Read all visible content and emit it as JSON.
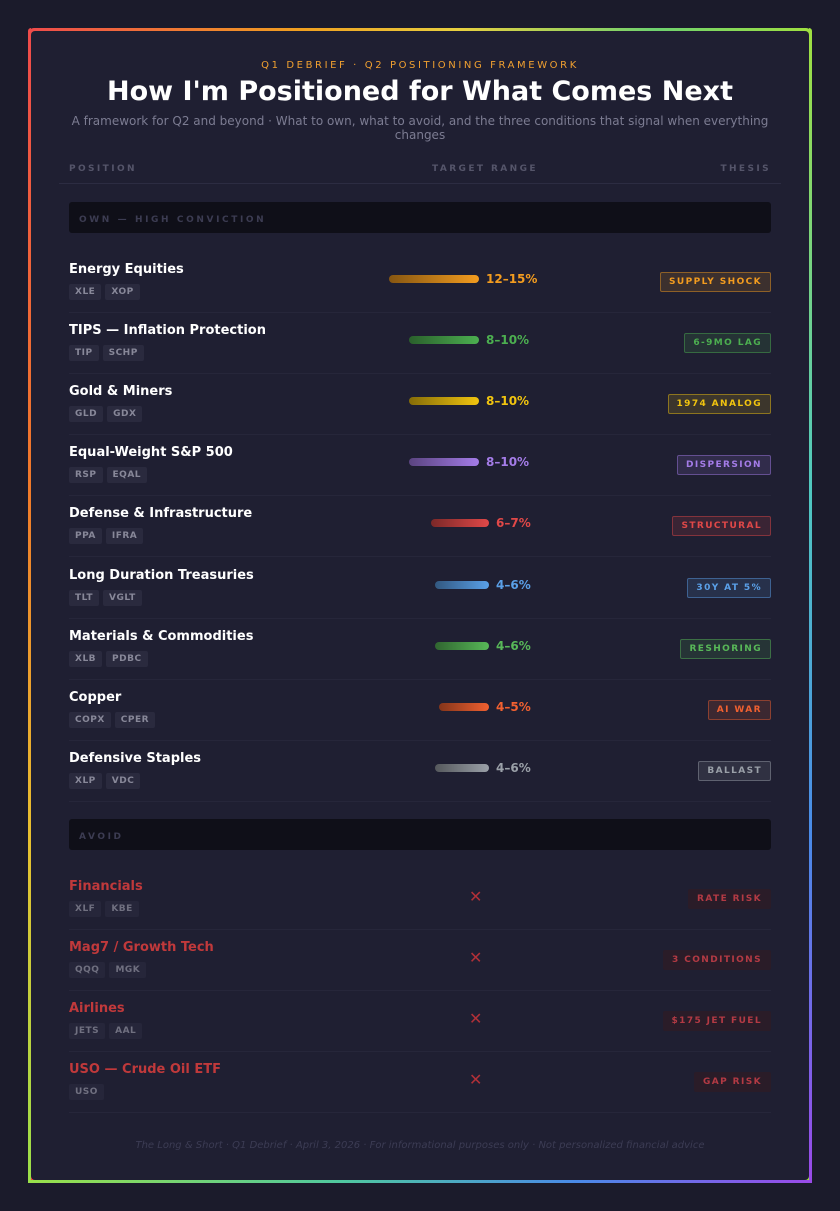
{
  "header": {
    "kicker": "Q1 DEBRIEF · Q2 POSITIONING FRAMEWORK",
    "title": "How I'm Positioned for What Comes Next",
    "subtitle": "A framework for Q2 and beyond · What to own, what to avoid, and the three conditions that signal when everything changes"
  },
  "columns": {
    "position": "POSITION",
    "target_range": "TARGET RANGE",
    "thesis": "THESIS"
  },
  "own_section": {
    "label": "OWN — HIGH CONVICTION",
    "rows": [
      {
        "name": "Energy Equities",
        "tickers": [
          "XLE",
          "XOP"
        ],
        "range": "12–15%",
        "range_low_pct": 12,
        "range_high_pct": 15,
        "thesis": "SUPPLY SHOCK",
        "color": "#f39c1f"
      },
      {
        "name": "TIPS — Inflation Protection",
        "tickers": [
          "TIP",
          "SCHP"
        ],
        "range": "8–10%",
        "range_low_pct": 8,
        "range_high_pct": 10,
        "thesis": "6-9MO LAG",
        "color": "#4caf50"
      },
      {
        "name": "Gold & Miners",
        "tickers": [
          "GLD",
          "GDX"
        ],
        "range": "8–10%",
        "range_low_pct": 8,
        "range_high_pct": 10,
        "thesis": "1974 ANALOG",
        "color": "#f1c40f"
      },
      {
        "name": "Equal-Weight S&P 500",
        "tickers": [
          "RSP",
          "EQAL"
        ],
        "range": "8–10%",
        "range_low_pct": 8,
        "range_high_pct": 10,
        "thesis": "DISPERSION",
        "color": "#a47ce8"
      },
      {
        "name": "Defense & Infrastructure",
        "tickers": [
          "PPA",
          "IFRA"
        ],
        "range": "6–7%",
        "range_low_pct": 6,
        "range_high_pct": 7,
        "thesis": "STRUCTURAL",
        "color": "#e04848"
      },
      {
        "name": "Long Duration Treasuries",
        "tickers": [
          "TLT",
          "VGLT"
        ],
        "range": "4–6%",
        "range_low_pct": 4,
        "range_high_pct": 6,
        "thesis": "30Y AT 5%",
        "color": "#5aa0e8"
      },
      {
        "name": "Materials & Commodities",
        "tickers": [
          "XLB",
          "PDBC"
        ],
        "range": "4–6%",
        "range_low_pct": 4,
        "range_high_pct": 6,
        "thesis": "RESHORING",
        "color": "#58b858"
      },
      {
        "name": "Copper",
        "tickers": [
          "COPX",
          "CPER"
        ],
        "range": "4–5%",
        "range_low_pct": 4,
        "range_high_pct": 5,
        "thesis": "AI WAR",
        "color": "#f06030"
      },
      {
        "name": "Defensive Staples",
        "tickers": [
          "XLP",
          "VDC"
        ],
        "range": "4–6%",
        "range_low_pct": 4,
        "range_high_pct": 6,
        "thesis": "BALLAST",
        "color": "#9aa0a8"
      }
    ]
  },
  "avoid_section": {
    "label": "AVOID",
    "mark": "✕",
    "rows": [
      {
        "name": "Financials",
        "tickers": [
          "XLF",
          "KBE"
        ],
        "thesis": "RATE RISK"
      },
      {
        "name": "Mag7 / Growth Tech",
        "tickers": [
          "QQQ",
          "MGK"
        ],
        "thesis": "3 CONDITIONS"
      },
      {
        "name": "Airlines",
        "tickers": [
          "JETS",
          "AAL"
        ],
        "thesis": "$175 JET FUEL"
      },
      {
        "name": "USO — Crude Oil ETF",
        "tickers": [
          "USO"
        ],
        "thesis": "GAP RISK"
      }
    ]
  },
  "footer": "The Long & Short · Q1 Debrief · April 3, 2026 · For informational purposes only · Not personalized financial advice"
}
